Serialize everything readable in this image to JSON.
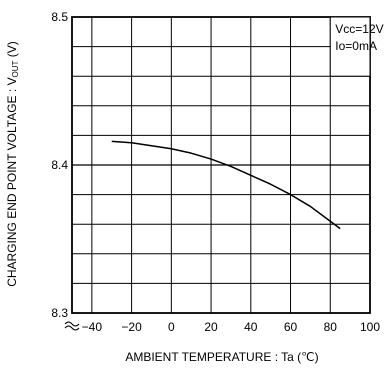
{
  "chart_data": {
    "type": "line",
    "title": "",
    "xlabel": "AMBIENT TEMPERATURE : Ta (℃)",
    "ylabel": "CHARGING END POINT VOLTAGE : V",
    "ylabel_subscript": "OUT",
    "ylabel_unit": " (V)",
    "xlim": [
      -50,
      100
    ],
    "ylim": [
      8.3,
      8.5
    ],
    "x_ticks": [
      -40,
      -20,
      0,
      20,
      40,
      60,
      80,
      100
    ],
    "x_tick_labels": [
      "−40",
      "−20",
      "0",
      "20",
      "40",
      "60",
      "80",
      "100"
    ],
    "y_ticks": [
      8.3,
      8.4,
      8.5
    ],
    "y_tick_labels": [
      "8.3",
      "8.4",
      "8.5"
    ],
    "y_minor_ticks": [
      8.32,
      8.34,
      8.36,
      8.38,
      8.42,
      8.44,
      8.46,
      8.48
    ],
    "grid": true,
    "axis_break": "y-bottom",
    "conditions": [
      "Vcc=12V",
      "Io=0mA"
    ],
    "legend_position": "top-right",
    "series": [
      {
        "x": [
          -30,
          -20,
          -10,
          0,
          10,
          20,
          30,
          40,
          50,
          60,
          70,
          80,
          85
        ],
        "y": [
          8.416,
          8.415,
          8.413,
          8.411,
          8.408,
          8.404,
          8.399,
          8.393,
          8.387,
          8.38,
          8.372,
          8.362,
          8.357
        ]
      }
    ]
  }
}
